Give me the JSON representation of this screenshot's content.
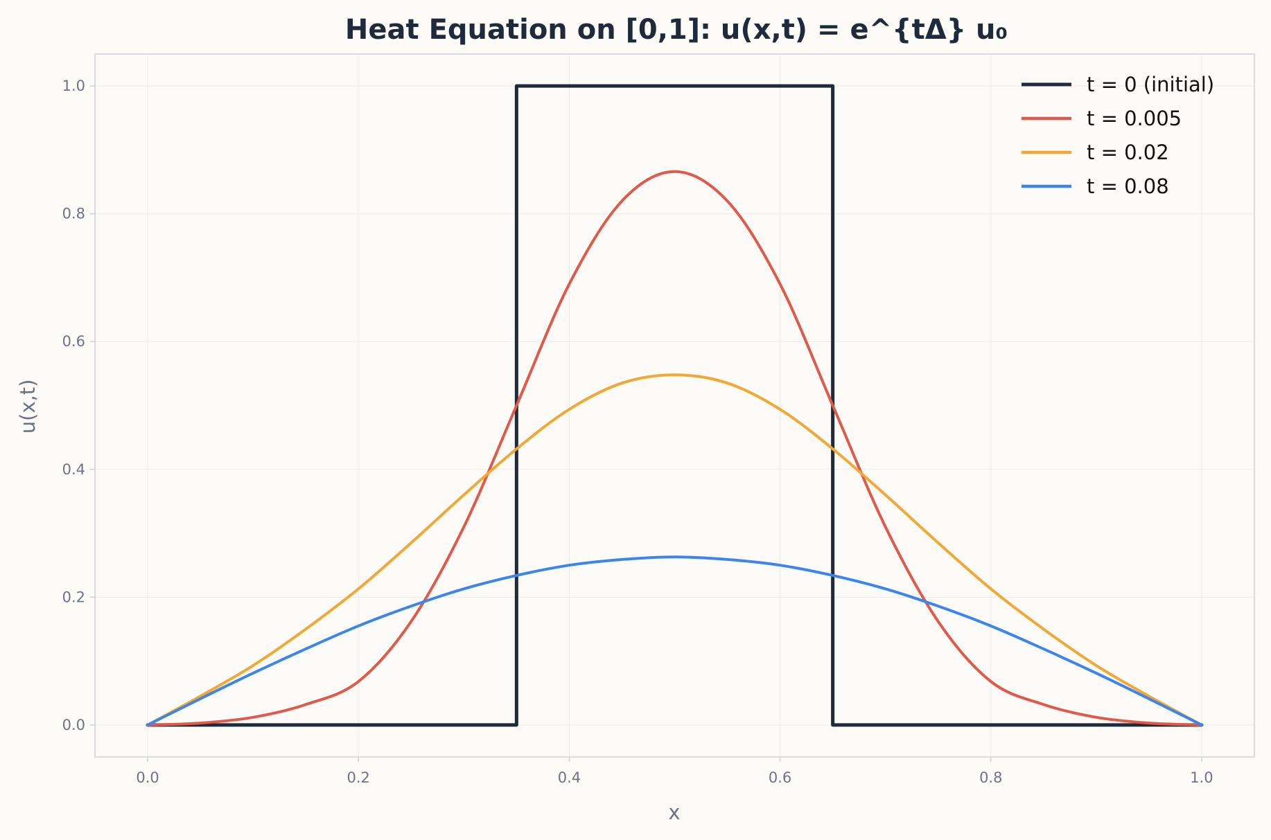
{
  "chart_data": {
    "type": "line",
    "title": "Heat Equation on [0,1]: u(x,t) = e^{tΔ} u₀",
    "xlabel": "x",
    "ylabel": "u(x,t)",
    "xlim": [
      -0.05,
      1.05
    ],
    "ylim": [
      -0.05,
      1.05
    ],
    "xticks": [
      0.0,
      0.2,
      0.4,
      0.6,
      0.8,
      1.0
    ],
    "xtick_labels": [
      "0.0",
      "0.2",
      "0.4",
      "0.6",
      "0.8",
      "1.0"
    ],
    "yticks": [
      0.0,
      0.2,
      0.4,
      0.6,
      0.8,
      1.0
    ],
    "ytick_labels": [
      "0.0",
      "0.2",
      "0.4",
      "0.6",
      "0.8",
      "1.0"
    ],
    "grid": true,
    "legend_position": "top-right",
    "series": [
      {
        "name": "t = 0 (initial)",
        "color": "#1f2a3a",
        "x": [
          0.0,
          0.35,
          0.35,
          0.65,
          0.65,
          1.0
        ],
        "y": [
          0.0,
          0.0,
          1.0,
          1.0,
          0.0,
          0.0
        ]
      },
      {
        "name": "t = 0.005",
        "color": "#e05a4b",
        "x": [
          0.0,
          0.05,
          0.1,
          0.15,
          0.2,
          0.25,
          0.3,
          0.35,
          0.4,
          0.45,
          0.5,
          0.55,
          0.6,
          0.65,
          0.7,
          0.75,
          0.8,
          0.85,
          0.9,
          0.95,
          1.0
        ],
        "y": [
          0.0,
          0.003,
          0.012,
          0.032,
          0.068,
          0.162,
          0.31,
          0.5,
          0.69,
          0.82,
          0.866,
          0.82,
          0.69,
          0.5,
          0.31,
          0.162,
          0.068,
          0.032,
          0.012,
          0.003,
          0.0
        ]
      },
      {
        "name": "t = 0.02",
        "color": "#f0a836",
        "x": [
          0.0,
          0.05,
          0.1,
          0.15,
          0.2,
          0.25,
          0.3,
          0.35,
          0.4,
          0.45,
          0.5,
          0.55,
          0.6,
          0.65,
          0.7,
          0.75,
          0.8,
          0.85,
          0.9,
          0.95,
          1.0
        ],
        "y": [
          0.0,
          0.045,
          0.093,
          0.15,
          0.213,
          0.285,
          0.36,
          0.432,
          0.494,
          0.535,
          0.548,
          0.535,
          0.494,
          0.432,
          0.36,
          0.285,
          0.213,
          0.15,
          0.093,
          0.045,
          0.0
        ]
      },
      {
        "name": "t = 0.08",
        "color": "#3d84ec",
        "x": [
          0.0,
          0.05,
          0.1,
          0.15,
          0.2,
          0.25,
          0.3,
          0.35,
          0.4,
          0.45,
          0.5,
          0.55,
          0.6,
          0.65,
          0.7,
          0.75,
          0.8,
          0.85,
          0.9,
          0.95,
          1.0
        ],
        "y": [
          0.0,
          0.041,
          0.081,
          0.119,
          0.155,
          0.186,
          0.213,
          0.234,
          0.25,
          0.259,
          0.263,
          0.259,
          0.25,
          0.234,
          0.213,
          0.186,
          0.155,
          0.119,
          0.081,
          0.041,
          0.0
        ]
      }
    ]
  }
}
